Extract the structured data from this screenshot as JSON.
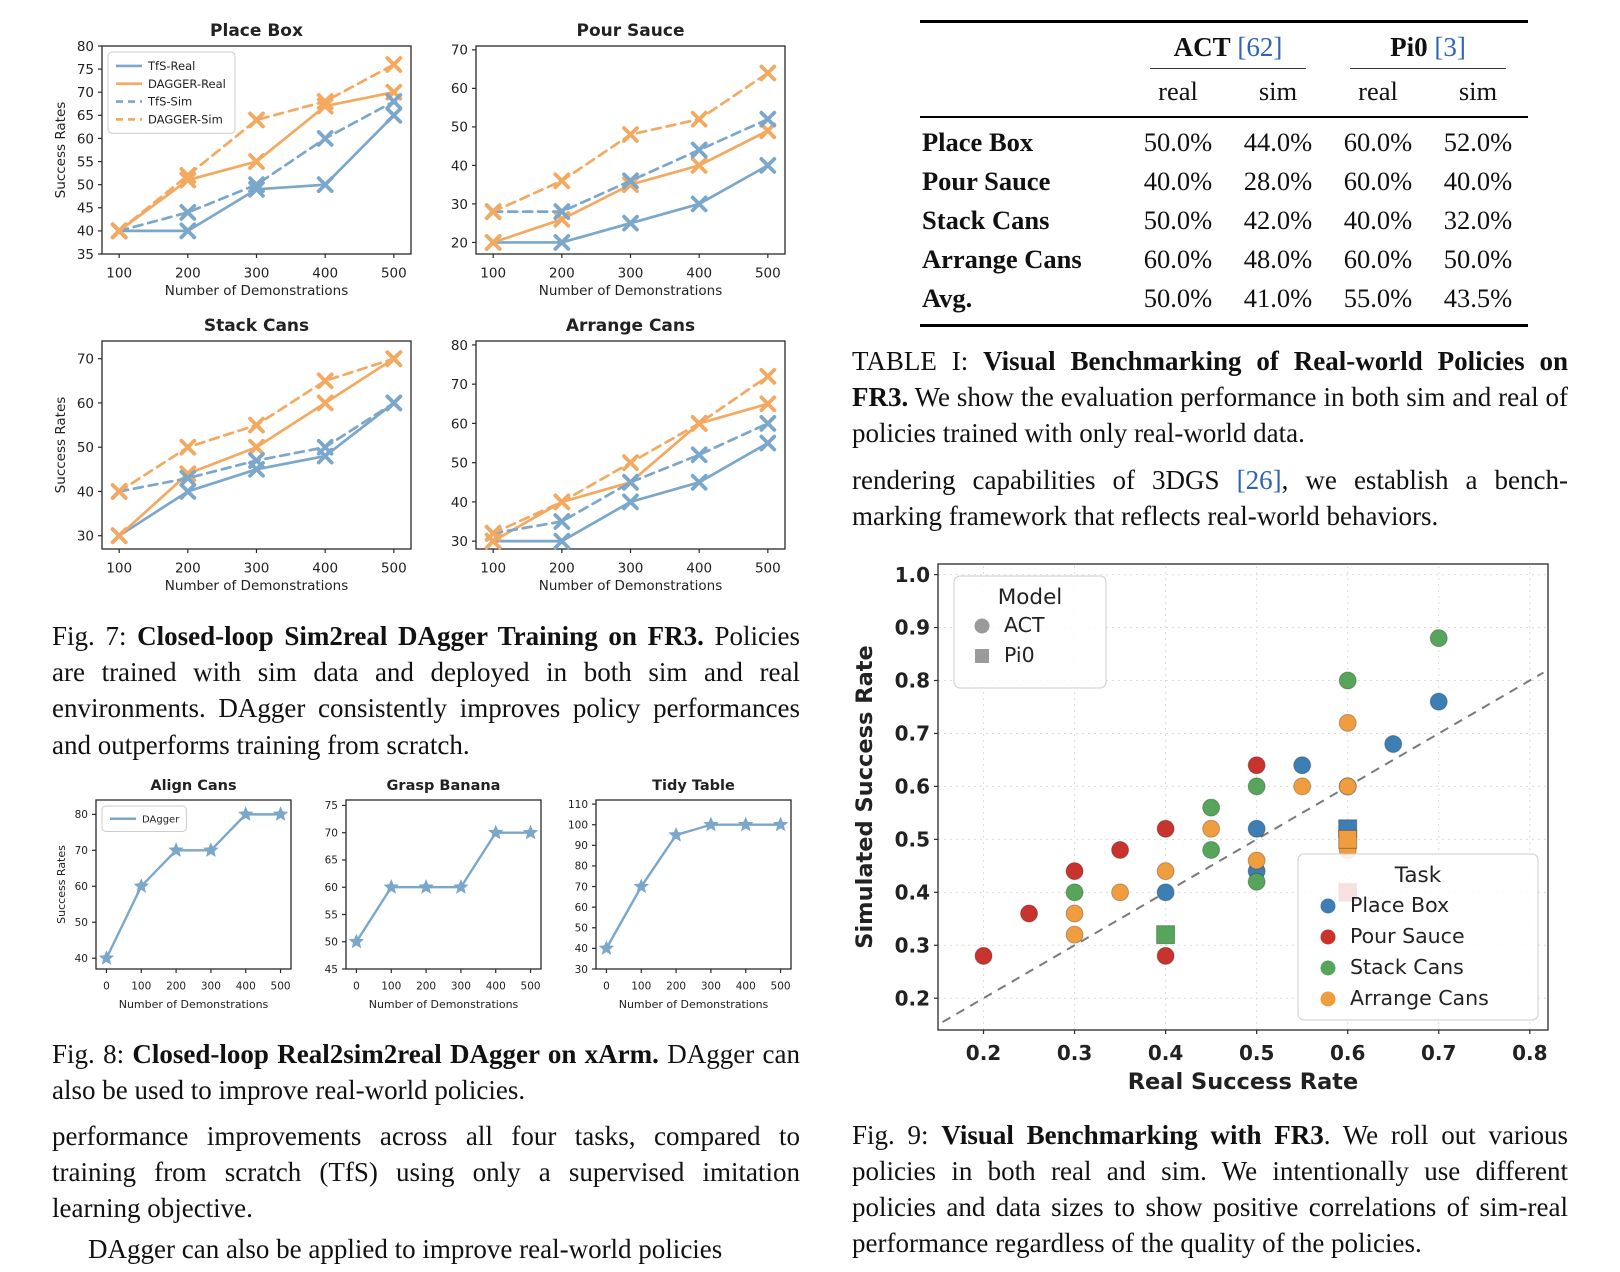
{
  "colors": {
    "line_blue": "#7ba7cb",
    "line_orange": "#f4a960",
    "cite_blue": "#2e63b8",
    "grid_gray": "#dcdcdc",
    "diagonal_gray": "#7a7a7a",
    "legend_gray": "#9a9a9a"
  },
  "left": {
    "fig7_caption": {
      "prefix": "Fig. 7: ",
      "bold": "Closed-loop Sim2real DAgger Training on FR3.",
      "rest": " Policies are trained with sim data and deployed in both sim and real environments. DAgger consistently improves policy performances and outperforms training from scratch."
    },
    "fig8_caption": {
      "prefix": "Fig. 8: ",
      "bold": "Closed-loop Real2sim2real DAgger on xArm.",
      "rest": " DAgger can also be used to improve real-world policies."
    },
    "para1": "performance improvements across all four tasks, compared to training from scratch (TfS) using only a supervised imitation learning objective.",
    "para2": "DAgger can also be applied to improve real-world policies"
  },
  "right": {
    "table": {
      "groups": [
        {
          "label": "ACT",
          "cite": "[62]"
        },
        {
          "label": "Pi0",
          "cite": "[3]"
        }
      ],
      "sub_headers": [
        "real",
        "sim",
        "real",
        "sim"
      ],
      "rows": [
        {
          "task": "Place Box",
          "values": [
            "50.0%",
            "44.0%",
            "60.0%",
            "52.0%"
          ]
        },
        {
          "task": "Pour Sauce",
          "values": [
            "40.0%",
            "28.0%",
            "60.0%",
            "40.0%"
          ]
        },
        {
          "task": "Stack Cans",
          "values": [
            "50.0%",
            "42.0%",
            "40.0%",
            "32.0%"
          ]
        },
        {
          "task": "Arrange Cans",
          "values": [
            "60.0%",
            "48.0%",
            "60.0%",
            "50.0%"
          ]
        },
        {
          "task": "Avg.",
          "values": [
            "50.0%",
            "41.0%",
            "55.0%",
            "43.5%"
          ]
        }
      ]
    },
    "table_caption": {
      "prefix": "TABLE I: ",
      "bold": "Visual Benchmarking of Real-world Policies on FR3.",
      "rest": " We show the evaluation performance in both sim and real of policies trained with only real-world data."
    },
    "para": {
      "pre": "rendering capabilities of 3DGS ",
      "cite": "[26]",
      "post": ", we establish a bench-marking framework that reflects real-world behaviors."
    },
    "fig9_caption": {
      "prefix": "Fig. 9: ",
      "bold": "Visual Benchmarking with FR3",
      "rest": ". We roll out various policies in both real and sim. We intentionally use different policies and data sizes to show positive correlations of sim-real performance regardless of the quality of the policies."
    }
  },
  "chart_data": [
    {
      "id": "place_box",
      "type": "line",
      "title": "Place Box",
      "xlabel": "Number of Demonstrations",
      "ylabel": "Success Rates",
      "x": [
        100,
        200,
        300,
        400,
        500
      ],
      "xticks": [
        100,
        200,
        300,
        400,
        500
      ],
      "xlim": [
        75,
        525
      ],
      "ylim": [
        35,
        80
      ],
      "yticks": [
        35,
        40,
        45,
        50,
        55,
        60,
        65,
        70,
        75,
        80
      ],
      "marker": "X",
      "legend": true,
      "series": [
        {
          "name": "TfS-Real",
          "style": "blue-solid",
          "values": [
            40,
            40,
            49,
            50,
            65
          ]
        },
        {
          "name": "DAGGER-Real",
          "style": "orange-solid",
          "values": [
            40,
            51,
            55,
            67,
            70
          ]
        },
        {
          "name": "TfS-Sim",
          "style": "blue-dash",
          "values": [
            40,
            44,
            50,
            60,
            68
          ]
        },
        {
          "name": "DAGGER-Sim",
          "style": "orange-dash",
          "values": [
            40,
            52,
            64,
            68,
            76
          ]
        }
      ]
    },
    {
      "id": "pour_sauce",
      "type": "line",
      "title": "Pour Sauce",
      "xlabel": "Number of Demonstrations",
      "ylabel": "",
      "x": [
        100,
        200,
        300,
        400,
        500
      ],
      "xticks": [
        100,
        200,
        300,
        400,
        500
      ],
      "xlim": [
        75,
        525
      ],
      "ylim": [
        17,
        71
      ],
      "yticks": [
        20,
        30,
        40,
        50,
        60,
        70
      ],
      "marker": "X",
      "legend": false,
      "series": [
        {
          "name": "TfS-Real",
          "style": "blue-solid",
          "values": [
            20,
            20,
            25,
            30,
            40
          ]
        },
        {
          "name": "DAGGER-Real",
          "style": "orange-solid",
          "values": [
            20,
            26,
            35,
            40,
            49
          ]
        },
        {
          "name": "TfS-Sim",
          "style": "blue-dash",
          "values": [
            28,
            28,
            36,
            44,
            52
          ]
        },
        {
          "name": "DAGGER-Sim",
          "style": "orange-dash",
          "values": [
            28,
            36,
            48,
            52,
            64
          ]
        }
      ]
    },
    {
      "id": "stack_cans",
      "type": "line",
      "title": "Stack Cans",
      "xlabel": "Number of Demonstrations",
      "ylabel": "Success Rates",
      "x": [
        100,
        200,
        300,
        400,
        500
      ],
      "xticks": [
        100,
        200,
        300,
        400,
        500
      ],
      "xlim": [
        75,
        525
      ],
      "ylim": [
        27,
        74
      ],
      "yticks": [
        30,
        40,
        50,
        60,
        70
      ],
      "marker": "X",
      "legend": false,
      "series": [
        {
          "name": "TfS-Real",
          "style": "blue-solid",
          "values": [
            30,
            40,
            45,
            48,
            60
          ]
        },
        {
          "name": "DAGGER-Real",
          "style": "orange-solid",
          "values": [
            30,
            44,
            50,
            60,
            70
          ]
        },
        {
          "name": "TfS-Sim",
          "style": "blue-dash",
          "values": [
            40,
            43,
            47,
            50,
            60
          ]
        },
        {
          "name": "DAGGER-Sim",
          "style": "orange-dash",
          "values": [
            40,
            50,
            55,
            65,
            70
          ]
        }
      ]
    },
    {
      "id": "arrange_cans",
      "type": "line",
      "title": "Arrange Cans",
      "xlabel": "Number of Demonstrations",
      "ylabel": "",
      "x": [
        100,
        200,
        300,
        400,
        500
      ],
      "xticks": [
        100,
        200,
        300,
        400,
        500
      ],
      "xlim": [
        75,
        525
      ],
      "ylim": [
        28,
        81
      ],
      "yticks": [
        30,
        40,
        50,
        60,
        70,
        80
      ],
      "marker": "X",
      "legend": false,
      "series": [
        {
          "name": "TfS-Real",
          "style": "blue-solid",
          "values": [
            30,
            30,
            40,
            45,
            55
          ]
        },
        {
          "name": "DAGGER-Real",
          "style": "orange-solid",
          "values": [
            30,
            40,
            45,
            60,
            65
          ]
        },
        {
          "name": "TfS-Sim",
          "style": "blue-dash",
          "values": [
            32,
            35,
            45,
            52,
            60
          ]
        },
        {
          "name": "DAGGER-Sim",
          "style": "orange-dash",
          "values": [
            32,
            40,
            50,
            60,
            72
          ]
        }
      ]
    },
    {
      "id": "align_cans",
      "type": "line",
      "title": "Align Cans",
      "xlabel": "Number of Demonstrations",
      "ylabel": "Success Rates",
      "x": [
        0,
        100,
        200,
        300,
        400,
        500
      ],
      "xticks": [
        0,
        100,
        200,
        300,
        400,
        500
      ],
      "xlim": [
        -30,
        530
      ],
      "ylim": [
        37,
        84
      ],
      "yticks": [
        40,
        50,
        60,
        70,
        80
      ],
      "marker": "star",
      "legend": true,
      "series": [
        {
          "name": "DAgger",
          "style": "blue-solid",
          "values": [
            40,
            60,
            70,
            70,
            80,
            80
          ]
        }
      ]
    },
    {
      "id": "grasp_banana",
      "type": "line",
      "title": "Grasp Banana",
      "xlabel": "Number of Demonstrations",
      "ylabel": "",
      "x": [
        0,
        100,
        200,
        300,
        400,
        500
      ],
      "xticks": [
        0,
        100,
        200,
        300,
        400,
        500
      ],
      "xlim": [
        -30,
        530
      ],
      "ylim": [
        45,
        76
      ],
      "yticks": [
        45,
        50,
        55,
        60,
        65,
        70,
        75
      ],
      "marker": "star",
      "legend": false,
      "series": [
        {
          "name": "DAgger",
          "style": "blue-solid",
          "values": [
            50,
            60,
            60,
            60,
            70,
            70
          ]
        }
      ]
    },
    {
      "id": "tidy_table",
      "type": "line",
      "title": "Tidy Table",
      "xlabel": "Number of Demonstrations",
      "ylabel": "",
      "x": [
        0,
        100,
        200,
        300,
        400,
        500
      ],
      "xticks": [
        0,
        100,
        200,
        300,
        400,
        500
      ],
      "xlim": [
        -30,
        530
      ],
      "ylim": [
        30,
        112
      ],
      "yticks": [
        30,
        40,
        50,
        60,
        70,
        80,
        90,
        100,
        110
      ],
      "marker": "star",
      "legend": false,
      "series": [
        {
          "name": "DAgger",
          "style": "blue-solid",
          "values": [
            40,
            70,
            95,
            100,
            100,
            100
          ]
        }
      ]
    },
    {
      "id": "fig9",
      "type": "scatter",
      "xlabel": "Real Success Rate",
      "ylabel": "Simulated Success Rate",
      "xlim": [
        0.15,
        0.82
      ],
      "ylim": [
        0.14,
        1.02
      ],
      "xticks": [
        0.2,
        0.3,
        0.4,
        0.5,
        0.6,
        0.7,
        0.8
      ],
      "yticks": [
        0.2,
        0.3,
        0.4,
        0.5,
        0.6,
        0.7,
        0.8,
        0.9,
        1.0
      ],
      "model_legend": {
        "title": "Model",
        "items": [
          {
            "label": "ACT",
            "marker": "circle"
          },
          {
            "label": "Pi0",
            "marker": "square"
          }
        ]
      },
      "task_legend_title": "Task",
      "tasks": [
        {
          "name": "Place Box",
          "color": "#3d7fb5",
          "circles": [
            [
              0.4,
              0.4
            ],
            [
              0.5,
              0.52
            ],
            [
              0.5,
              0.44
            ],
            [
              0.55,
              0.64
            ],
            [
              0.6,
              0.6
            ],
            [
              0.65,
              0.68
            ],
            [
              0.7,
              0.76
            ]
          ],
          "square": [
            0.6,
            0.52
          ]
        },
        {
          "name": "Pour Sauce",
          "color": "#c8332e",
          "circles": [
            [
              0.2,
              0.28
            ],
            [
              0.25,
              0.36
            ],
            [
              0.3,
              0.44
            ],
            [
              0.35,
              0.48
            ],
            [
              0.4,
              0.52
            ],
            [
              0.4,
              0.28
            ],
            [
              0.5,
              0.64
            ]
          ],
          "square": [
            0.6,
            0.4
          ]
        },
        {
          "name": "Stack Cans",
          "color": "#57a55a",
          "circles": [
            [
              0.3,
              0.4
            ],
            [
              0.45,
              0.56
            ],
            [
              0.45,
              0.48
            ],
            [
              0.5,
              0.6
            ],
            [
              0.5,
              0.42
            ],
            [
              0.6,
              0.8
            ],
            [
              0.7,
              0.88
            ]
          ],
          "square": [
            0.4,
            0.32
          ]
        },
        {
          "name": "Arrange Cans",
          "color": "#f09d3f",
          "circles": [
            [
              0.3,
              0.36
            ],
            [
              0.3,
              0.32
            ],
            [
              0.35,
              0.4
            ],
            [
              0.4,
              0.44
            ],
            [
              0.45,
              0.52
            ],
            [
              0.5,
              0.46
            ],
            [
              0.55,
              0.6
            ],
            [
              0.6,
              0.72
            ],
            [
              0.6,
              0.6
            ],
            [
              0.6,
              0.48
            ],
            [
              0.6,
              0.51
            ]
          ],
          "square": [
            0.6,
            0.5
          ]
        }
      ]
    }
  ]
}
